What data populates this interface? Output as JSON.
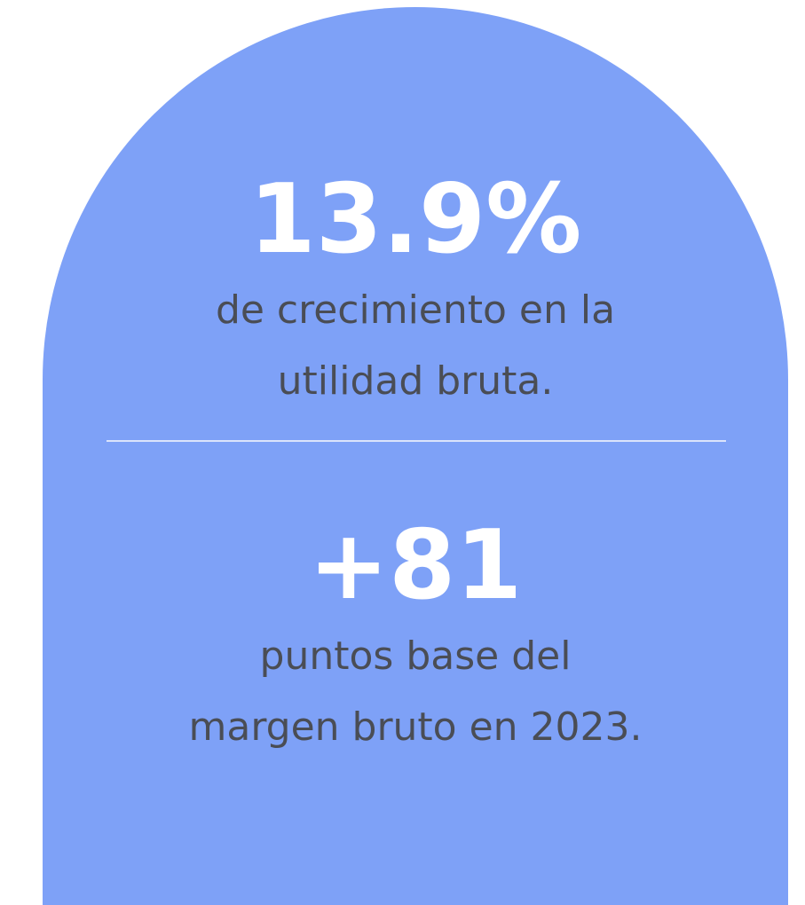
{
  "stats": [
    {
      "value": "13.9%",
      "lines": [
        "de crecimiento en la",
        "utilidad bruta."
      ]
    },
    {
      "value": "+81",
      "lines": [
        "puntos base del",
        "margen bruto en 2023."
      ]
    }
  ]
}
